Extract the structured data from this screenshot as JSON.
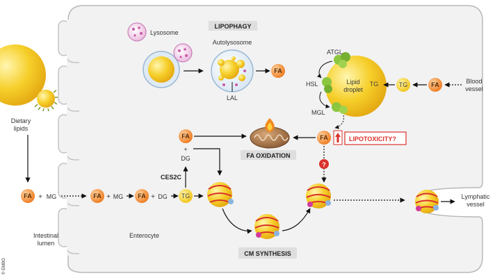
{
  "labels": {
    "lipophagy": "LIPOPHAGY",
    "lysosome": "Lysosome",
    "autolysosome": "Autolysosome",
    "lal": "LAL",
    "atgl": "ATGL",
    "hsl": "HSL",
    "mgl": "MGL",
    "lipid_droplet_l1": "Lipid",
    "lipid_droplet_l2": "droplet",
    "blood_vessel_l1": "Blood",
    "blood_vessel_l2": "vessel",
    "dietary_lipids_l1": "Dietary",
    "dietary_lipids_l2": "lipids",
    "fa_oxidation": "FA OXIDATION",
    "lipotoxicity": "LIPOTOXICITY",
    "lipotoxicity_q": "?",
    "question_mark": "?",
    "ces2c": "CES2C",
    "cm_synthesis": "CM SYNTHESIS",
    "lymphatic_l1": "Lymphatic",
    "lymphatic_l2": "vessel",
    "intestinal_l1": "Intestinal",
    "intestinal_l2": "lumen",
    "enterocyte": "Enterocyte",
    "copyright": "© EMBO"
  },
  "molecules": {
    "fa": "FA",
    "tg": "TG",
    "mg": "MG",
    "dg": "DG",
    "plus": "+"
  },
  "colors": {
    "fa_orange": "#f08a30",
    "tg_yellow": "#f5d020",
    "droplet": "#f4c526",
    "cm_red": "#d9322a",
    "enzyme_green": "#8cc63f",
    "lysosome_pink": "#e6a0d0",
    "lipotox_red": "#d9322a"
  }
}
